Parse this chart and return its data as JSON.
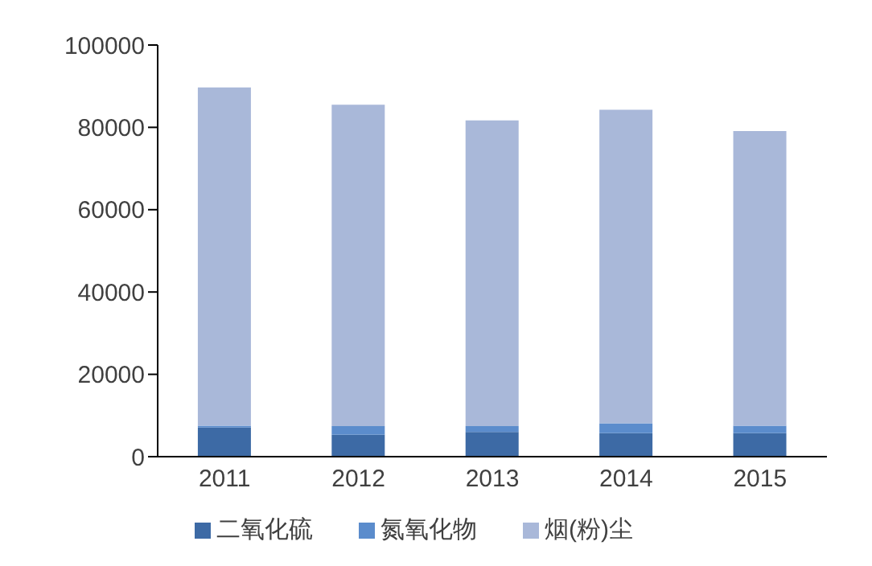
{
  "chart_data": {
    "type": "bar",
    "stacked": true,
    "categories": [
      "2011",
      "2012",
      "2013",
      "2014",
      "2015"
    ],
    "series": [
      {
        "name": "二氧化硫",
        "color": "#3d6aa5",
        "values": [
          7100,
          5300,
          6000,
          5700,
          5700
        ]
      },
      {
        "name": "氮氧化物",
        "color": "#5b8ccc",
        "values": [
          400,
          2100,
          1400,
          2400,
          1800
        ]
      },
      {
        "name": "烟(粉)尘",
        "color": "#a9b8d9",
        "values": [
          82200,
          78100,
          74300,
          76200,
          71600
        ]
      }
    ],
    "ylim": [
      0,
      100000
    ],
    "yticks": [
      0,
      20000,
      40000,
      60000,
      80000,
      100000
    ],
    "grid": false,
    "legend": "bottom"
  }
}
